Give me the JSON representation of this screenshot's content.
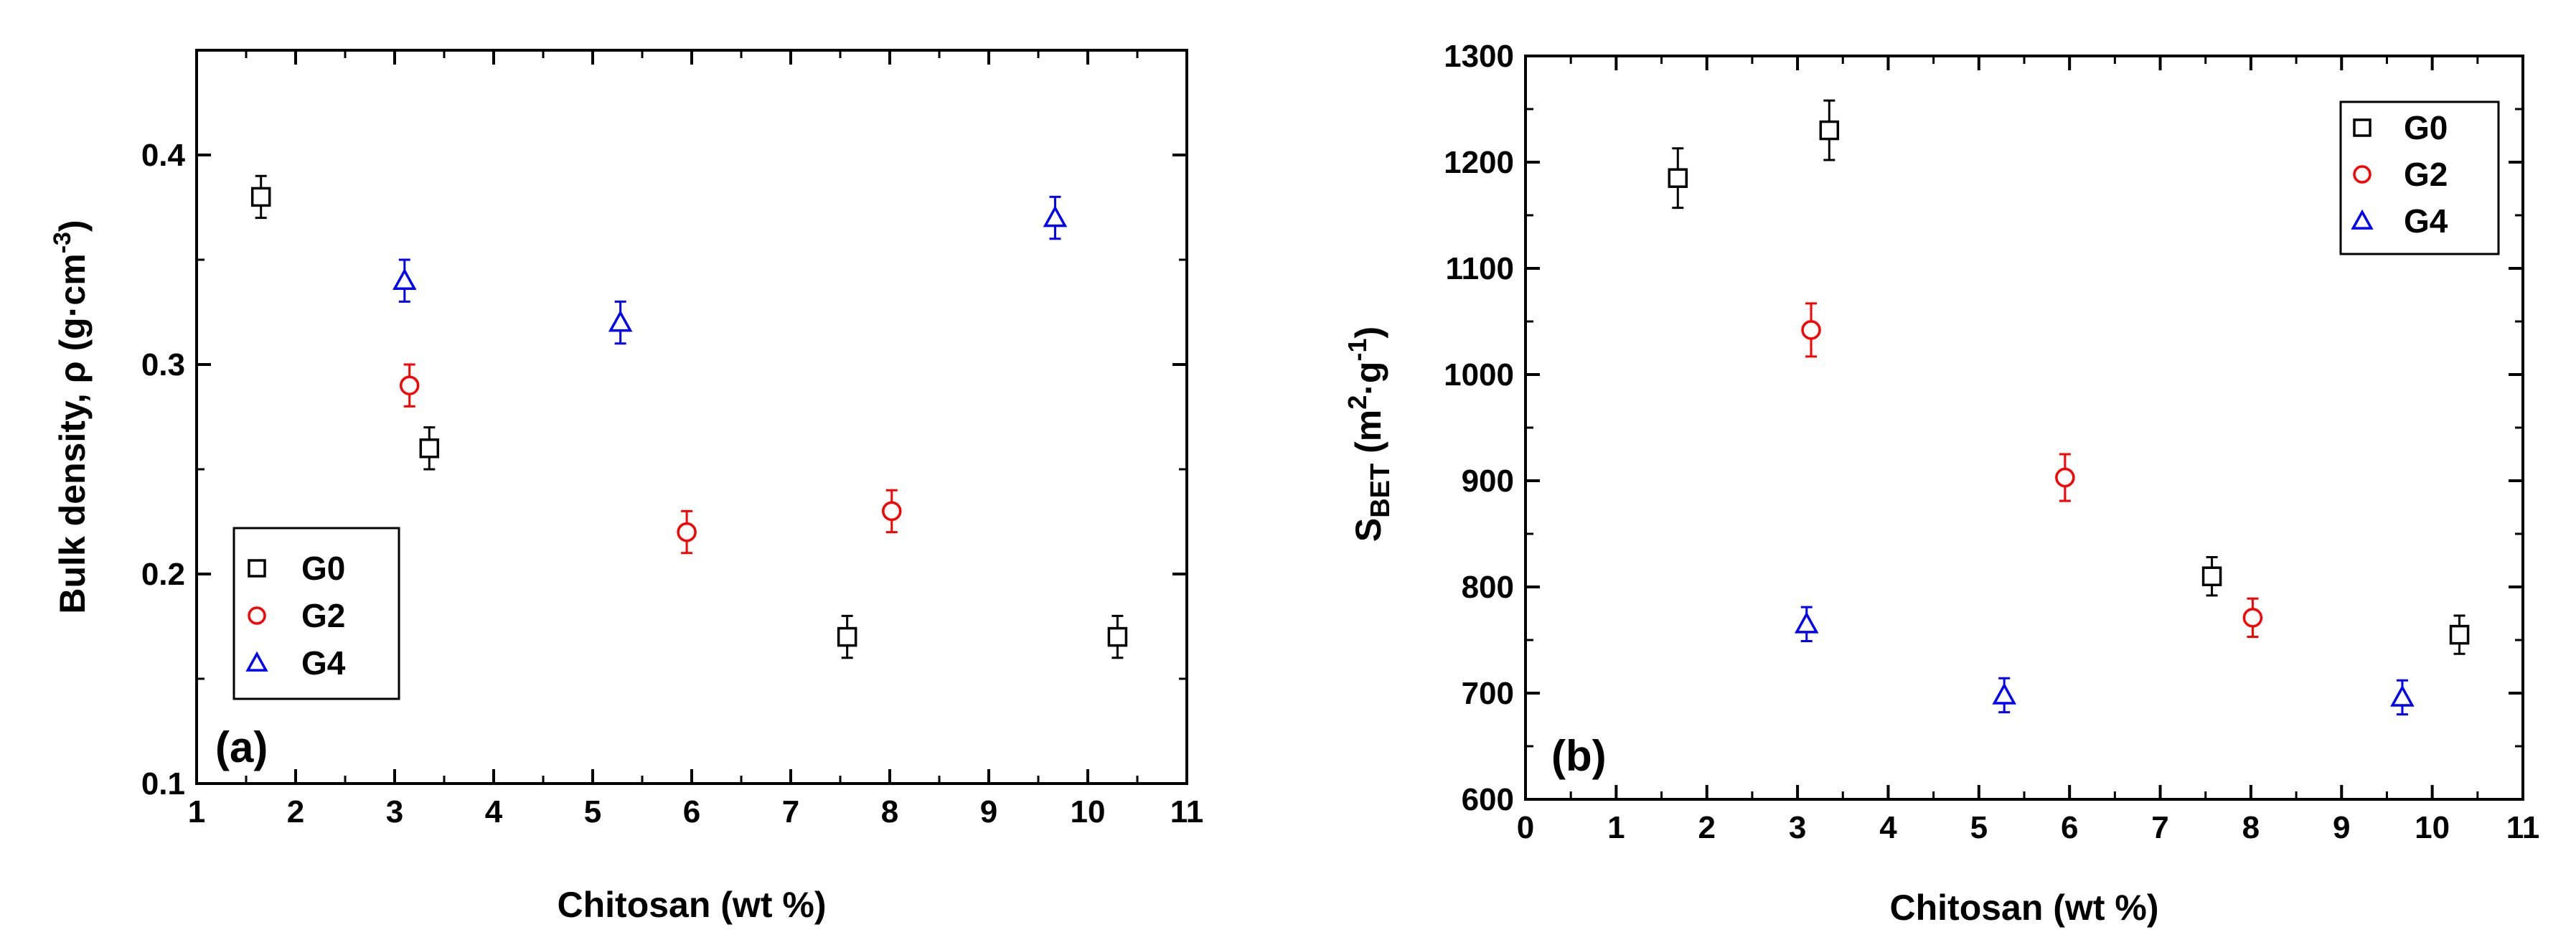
{
  "chart_data": [
    {
      "type": "scatter",
      "panel_label": "(a)",
      "title": "",
      "xlabel": "Chitosan (wt %)",
      "ylabel": "Bulk density, ρ (g·cm",
      "ylabel_sup": "-3",
      "ylabel_tail": ")",
      "xlim": [
        1,
        11
      ],
      "ylim": [
        0.1,
        0.45
      ],
      "xticks": [
        1,
        2,
        3,
        4,
        5,
        6,
        7,
        8,
        9,
        10,
        11
      ],
      "yticks": [
        0.1,
        0.2,
        0.3,
        0.4
      ],
      "ytick_labels": [
        "0.1",
        "0.2",
        "0.3",
        "0.4"
      ],
      "grid": false,
      "legend_position": "bottom-left",
      "series": [
        {
          "name": "G0",
          "marker": "square",
          "color": "#000000",
          "x": [
            1.65,
            3.35,
            7.57,
            10.3
          ],
          "y": [
            0.38,
            0.26,
            0.17,
            0.17
          ],
          "err": [
            0.01,
            0.01,
            0.01,
            0.01
          ]
        },
        {
          "name": "G2",
          "marker": "circle",
          "color": "#ff0000",
          "x": [
            3.15,
            5.95,
            8.02
          ],
          "y": [
            0.29,
            0.22,
            0.23
          ],
          "err": [
            0.01,
            0.01,
            0.01
          ]
        },
        {
          "name": "G4",
          "marker": "triangle",
          "color": "#0000ff",
          "x": [
            3.1,
            5.28,
            9.67
          ],
          "y": [
            0.34,
            0.32,
            0.37
          ],
          "err": [
            0.01,
            0.01,
            0.01
          ]
        }
      ]
    },
    {
      "type": "scatter",
      "panel_label": "(b)",
      "title": "",
      "xlabel": "Chitosan (wt %)",
      "ylabel_main": "S",
      "ylabel_sub": "BET",
      "ylabel_mid": " (m",
      "ylabel_sup1": "2",
      "ylabel_dot": "·g",
      "ylabel_sup2": "-1",
      "ylabel_tail": ")",
      "xlim": [
        0,
        11
      ],
      "ylim": [
        600,
        1300
      ],
      "xticks": [
        0,
        1,
        2,
        3,
        4,
        5,
        6,
        7,
        8,
        9,
        10,
        11
      ],
      "yticks": [
        600,
        700,
        800,
        900,
        1000,
        1100,
        1200,
        1300
      ],
      "ytick_labels": [
        "600",
        "700",
        "800",
        "900",
        "1000",
        "1100",
        "1200",
        "1300"
      ],
      "grid": false,
      "legend_position": "top-right",
      "series": [
        {
          "name": "G0",
          "marker": "square",
          "color": "#000000",
          "x": [
            1.68,
            3.35,
            7.57,
            10.3
          ],
          "y": [
            1185,
            1230,
            810,
            755
          ],
          "err": [
            28,
            28,
            18,
            18
          ]
        },
        {
          "name": "G2",
          "marker": "circle",
          "color": "#ff0000",
          "x": [
            3.15,
            5.95,
            8.02
          ],
          "y": [
            1042,
            903,
            771
          ],
          "err": [
            25,
            22,
            18
          ]
        },
        {
          "name": "G4",
          "marker": "triangle",
          "color": "#0000ff",
          "x": [
            3.1,
            5.28,
            9.67
          ],
          "y": [
            765,
            698,
            696
          ],
          "err": [
            16,
            16,
            16
          ]
        }
      ]
    }
  ]
}
